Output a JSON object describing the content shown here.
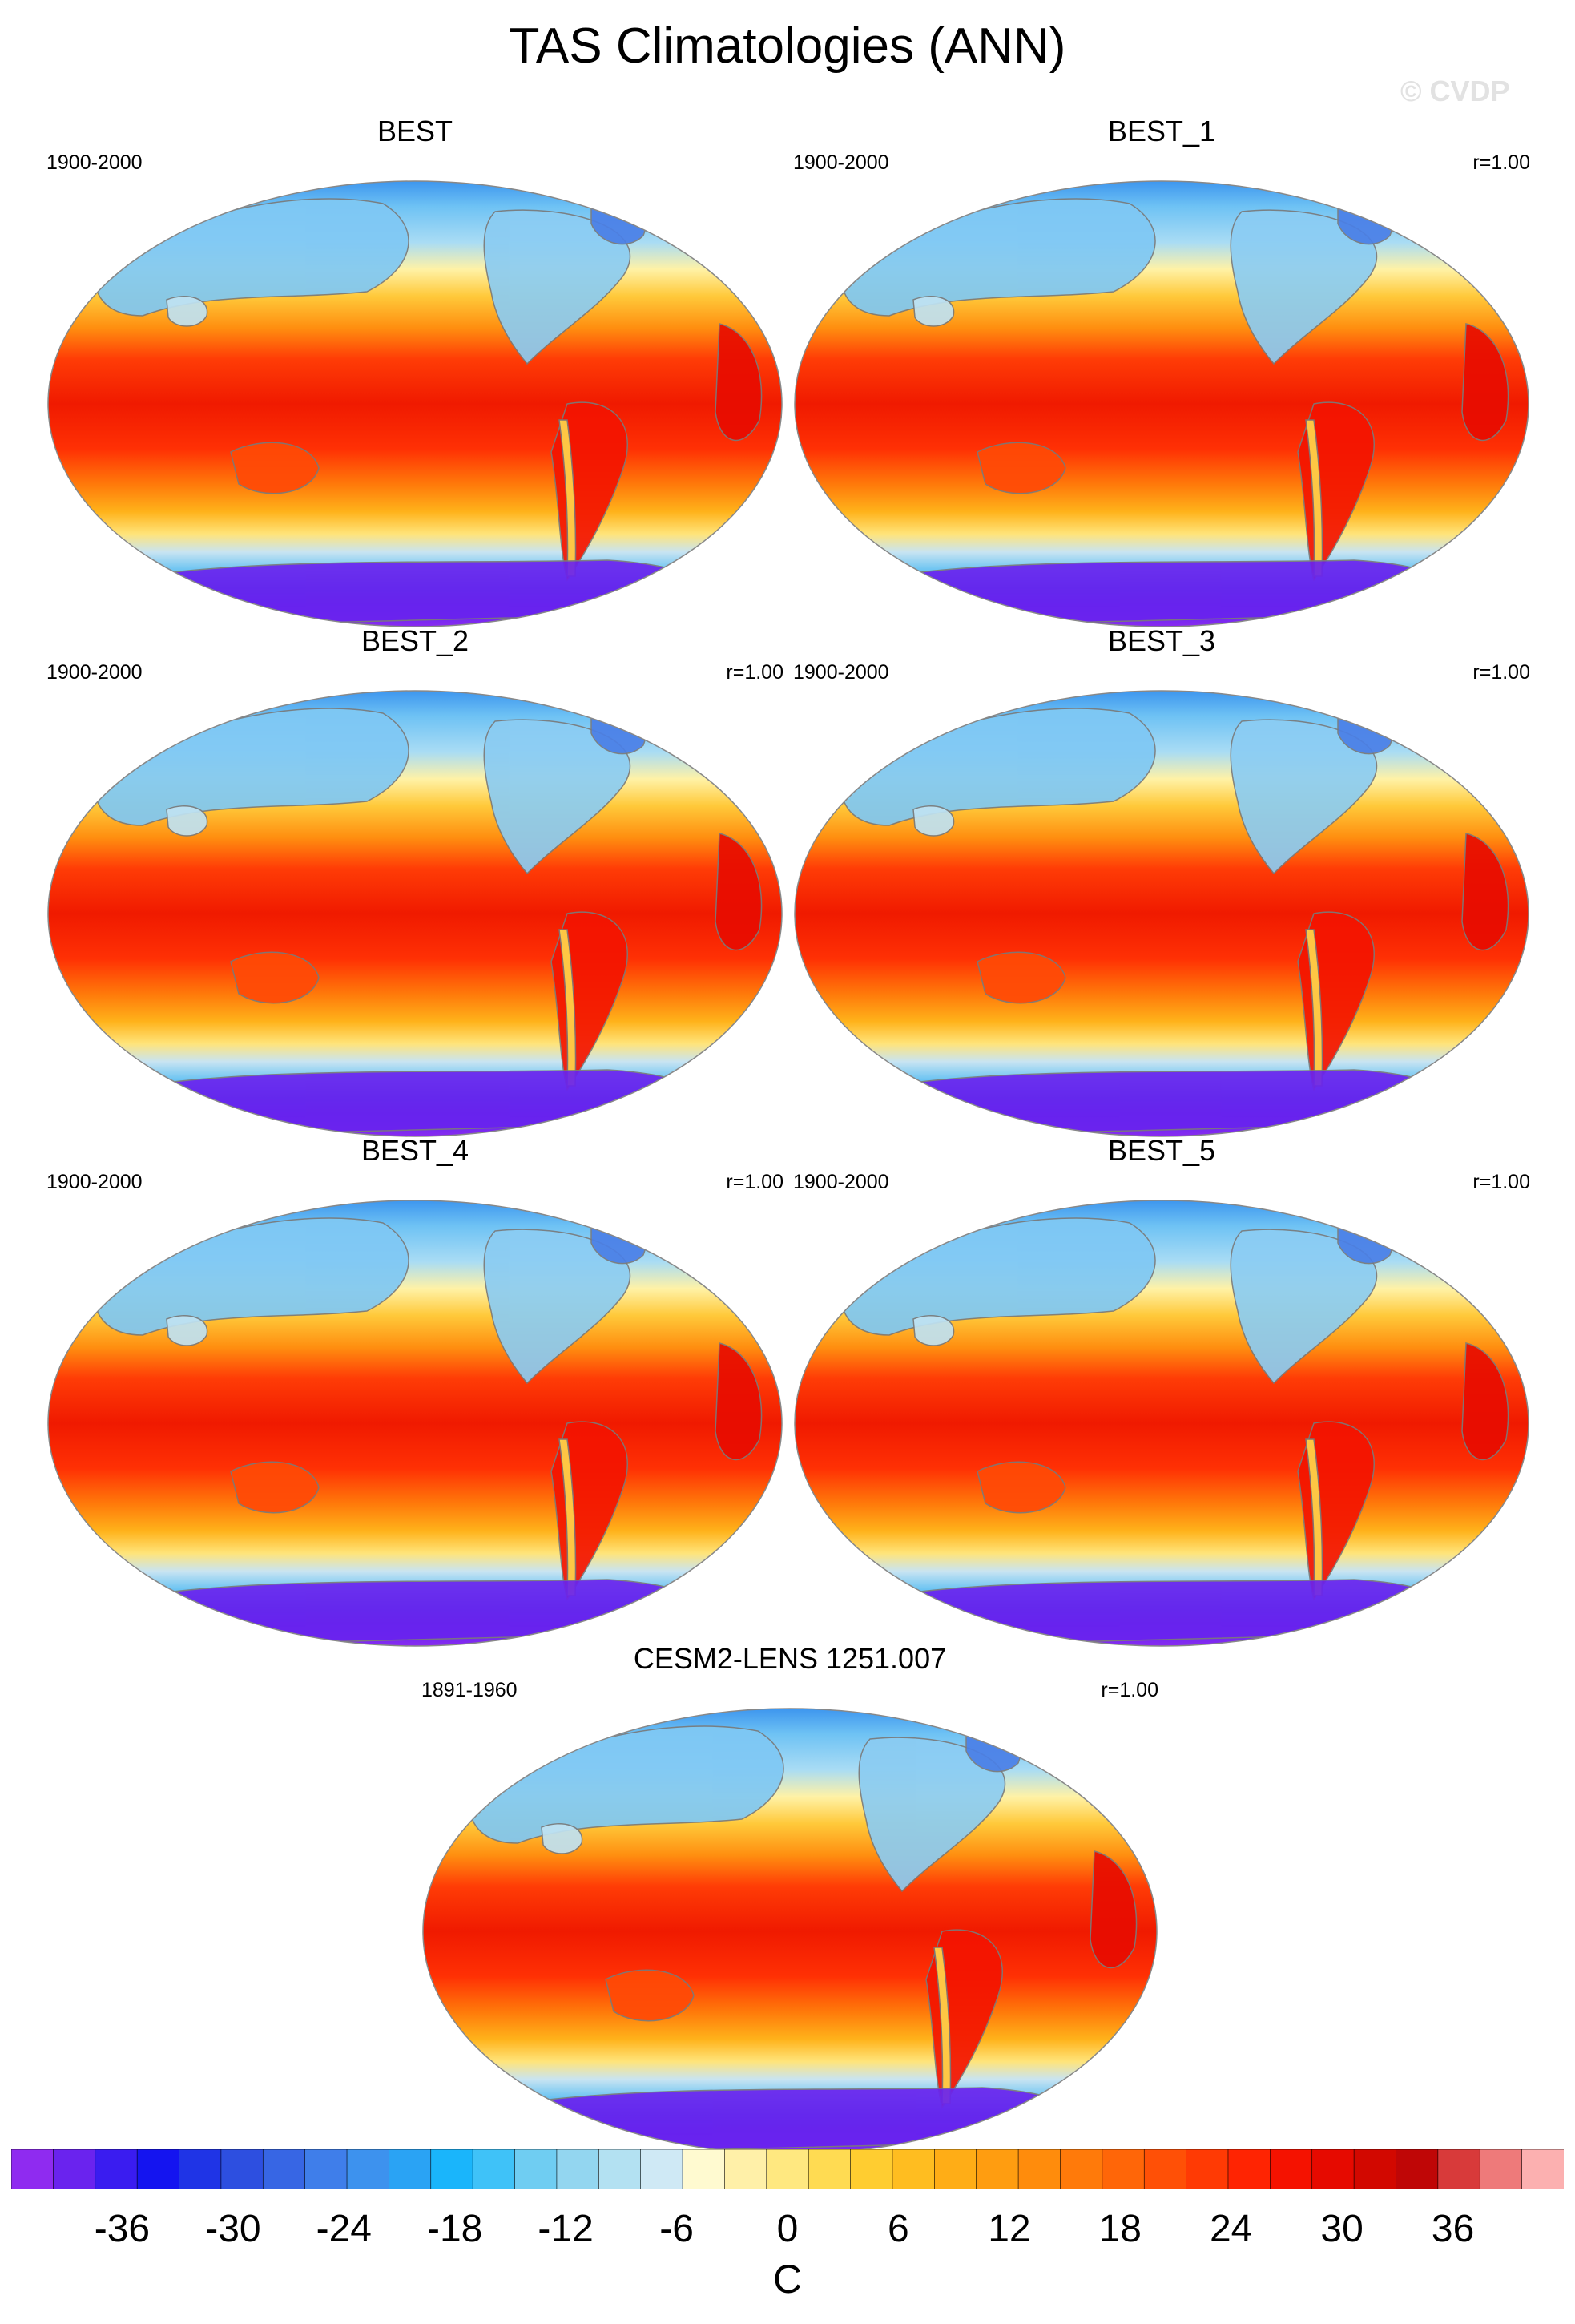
{
  "title": "TAS Climatologies (ANN)",
  "watermark": "© CVDP",
  "panels": [
    {
      "name": "BEST",
      "period": "1900-2000",
      "r": ""
    },
    {
      "name": "BEST_1",
      "period": "1900-2000",
      "r": "r=1.00"
    },
    {
      "name": "BEST_2",
      "period": "1900-2000",
      "r": "r=1.00"
    },
    {
      "name": "BEST_3",
      "period": "1900-2000",
      "r": "r=1.00"
    },
    {
      "name": "BEST_4",
      "period": "1900-2000",
      "r": "r=1.00"
    },
    {
      "name": "BEST_5",
      "period": "1900-2000",
      "r": "r=1.00"
    },
    {
      "name": "CESM2-LENS 1251.007",
      "period": "1891-1960",
      "r": "r=1.00"
    }
  ],
  "chart_data": {
    "type": "heatmap",
    "title": "TAS Climatologies (ANN)",
    "projection": "Robinson (global, Pacific-centered)",
    "colorbar": {
      "unit": "C",
      "tick_labels": [
        "-36",
        "-30",
        "-24",
        "-18",
        "-12",
        "-6",
        "0",
        "6",
        "12",
        "18",
        "24",
        "30",
        "36"
      ],
      "range": [
        -42,
        42
      ],
      "step": 2,
      "colors": [
        "#8f2bf0",
        "#6a23ee",
        "#3a1cf0",
        "#1414f0",
        "#1f34e6",
        "#2d4fe0",
        "#3766e4",
        "#3f7eea",
        "#3d92ee",
        "#2aa3f4",
        "#1ab5fb",
        "#3fc2f8",
        "#6fcdf2",
        "#93d6f0",
        "#b3e1f2",
        "#cfe9f5",
        "#fffad0",
        "#fff0a8",
        "#ffe880",
        "#ffdb52",
        "#ffcd30",
        "#ffbd20",
        "#ffad16",
        "#ff9d10",
        "#ff8c0c",
        "#ff7a0a",
        "#ff6608",
        "#ff5006",
        "#ff3a04",
        "#ff2402",
        "#f51200",
        "#e60a00",
        "#d20800",
        "#bf0606",
        "#d83a3a",
        "#ee7a7a",
        "#fcb0b0"
      ]
    },
    "fields": [
      "BEST",
      "BEST_1",
      "BEST_2",
      "BEST_3",
      "BEST_4",
      "BEST_5",
      "CESM2-LENS 1251.007"
    ]
  }
}
